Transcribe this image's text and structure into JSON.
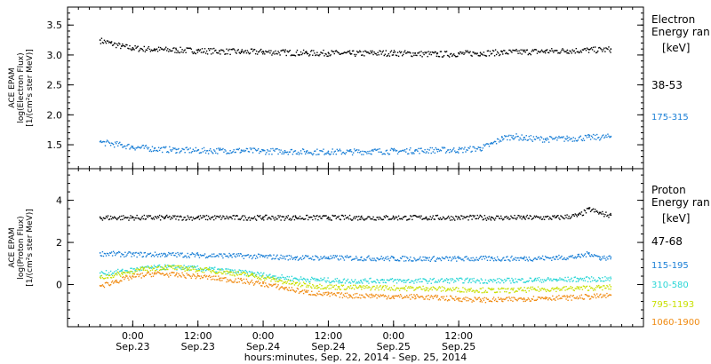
{
  "chart_data": [
    {
      "type": "scatter",
      "panel": "electron",
      "ylabel": [
        "ACE EPAM",
        "log(Electron Flux)",
        "[1/(cm²s ster MeV)]"
      ],
      "legend_title": [
        "Electron",
        "Energy ran",
        "[keV]"
      ],
      "yticks": [
        "1.5",
        "2.0",
        "2.5",
        "3.0",
        "3.5"
      ],
      "ylim": [
        1.1,
        3.8
      ],
      "series": [
        {
          "name": "38-53",
          "color": "#000000",
          "points": [
            [
              -6,
              3.25
            ],
            [
              -4,
              3.2
            ],
            [
              -2,
              3.15
            ],
            [
              0,
              3.12
            ],
            [
              4,
              3.1
            ],
            [
              8,
              3.09
            ],
            [
              12,
              3.08
            ],
            [
              16,
              3.07
            ],
            [
              20,
              3.06
            ],
            [
              24,
              3.06
            ],
            [
              28,
              3.05
            ],
            [
              32,
              3.04
            ],
            [
              36,
              3.04
            ],
            [
              40,
              3.03
            ],
            [
              44,
              3.04
            ],
            [
              48,
              3.04
            ],
            [
              52,
              3.03
            ],
            [
              56,
              3.02
            ],
            [
              60,
              3.03
            ],
            [
              64,
              3.04
            ],
            [
              68,
              3.05
            ],
            [
              72,
              3.06
            ],
            [
              76,
              3.07
            ],
            [
              80,
              3.08
            ],
            [
              84,
              3.09
            ],
            [
              88,
              3.1
            ]
          ]
        },
        {
          "name": "175-315",
          "color": "#1a7fd6",
          "points": [
            [
              -6,
              1.55
            ],
            [
              -2,
              1.5
            ],
            [
              0,
              1.47
            ],
            [
              4,
              1.44
            ],
            [
              8,
              1.42
            ],
            [
              12,
              1.41
            ],
            [
              16,
              1.41
            ],
            [
              20,
              1.41
            ],
            [
              24,
              1.4
            ],
            [
              28,
              1.4
            ],
            [
              32,
              1.39
            ],
            [
              36,
              1.39
            ],
            [
              40,
              1.39
            ],
            [
              44,
              1.4
            ],
            [
              48,
              1.4
            ],
            [
              52,
              1.41
            ],
            [
              56,
              1.42
            ],
            [
              60,
              1.42
            ],
            [
              64,
              1.45
            ],
            [
              66,
              1.52
            ],
            [
              68,
              1.62
            ],
            [
              70,
              1.65
            ],
            [
              72,
              1.62
            ],
            [
              76,
              1.6
            ],
            [
              80,
              1.61
            ],
            [
              84,
              1.63
            ],
            [
              88,
              1.64
            ]
          ]
        }
      ]
    },
    {
      "type": "scatter",
      "panel": "proton",
      "ylabel": [
        "ACE EPAM",
        "log(Proton Flux)",
        "[1/(cm²s ster MeV)]"
      ],
      "legend_title": [
        "Proton",
        "Energy ran",
        "[keV]"
      ],
      "yticks": [
        "0",
        "2",
        "4"
      ],
      "ylim": [
        -2.0,
        5.5
      ],
      "series": [
        {
          "name": "47-68",
          "color": "#000000",
          "points": [
            [
              -6,
              3.2
            ],
            [
              0,
              3.2
            ],
            [
              6,
              3.2
            ],
            [
              12,
              3.2
            ],
            [
              18,
              3.2
            ],
            [
              24,
              3.2
            ],
            [
              30,
              3.2
            ],
            [
              36,
              3.2
            ],
            [
              42,
              3.2
            ],
            [
              48,
              3.2
            ],
            [
              54,
              3.2
            ],
            [
              60,
              3.2
            ],
            [
              66,
              3.2
            ],
            [
              72,
              3.2
            ],
            [
              78,
              3.2
            ],
            [
              82,
              3.3
            ],
            [
              84,
              3.6
            ],
            [
              86,
              3.4
            ],
            [
              88,
              3.3
            ]
          ]
        },
        {
          "name": "115-195",
          "color": "#1a7fd6",
          "points": [
            [
              -6,
              1.5
            ],
            [
              0,
              1.45
            ],
            [
              6,
              1.45
            ],
            [
              12,
              1.42
            ],
            [
              18,
              1.4
            ],
            [
              24,
              1.35
            ],
            [
              30,
              1.3
            ],
            [
              36,
              1.3
            ],
            [
              42,
              1.28
            ],
            [
              48,
              1.26
            ],
            [
              54,
              1.25
            ],
            [
              60,
              1.25
            ],
            [
              66,
              1.26
            ],
            [
              72,
              1.26
            ],
            [
              78,
              1.3
            ],
            [
              82,
              1.35
            ],
            [
              84,
              1.5
            ],
            [
              86,
              1.3
            ],
            [
              88,
              1.3
            ]
          ]
        },
        {
          "name": "310-580",
          "color": "#2ad6d6",
          "points": [
            [
              -6,
              0.55
            ],
            [
              -2,
              0.65
            ],
            [
              2,
              0.8
            ],
            [
              6,
              0.85
            ],
            [
              10,
              0.82
            ],
            [
              14,
              0.75
            ],
            [
              18,
              0.65
            ],
            [
              22,
              0.55
            ],
            [
              26,
              0.4
            ],
            [
              30,
              0.3
            ],
            [
              34,
              0.25
            ],
            [
              38,
              0.2
            ],
            [
              42,
              0.2
            ],
            [
              46,
              0.22
            ],
            [
              50,
              0.2
            ],
            [
              54,
              0.2
            ],
            [
              58,
              0.22
            ],
            [
              62,
              0.22
            ],
            [
              66,
              0.2
            ],
            [
              70,
              0.22
            ],
            [
              74,
              0.25
            ],
            [
              78,
              0.25
            ],
            [
              82,
              0.28
            ],
            [
              86,
              0.28
            ],
            [
              88,
              0.28
            ]
          ]
        },
        {
          "name": "795-1193",
          "color": "#c8e000",
          "points": [
            [
              -6,
              0.35
            ],
            [
              -2,
              0.55
            ],
            [
              2,
              0.75
            ],
            [
              6,
              0.85
            ],
            [
              10,
              0.78
            ],
            [
              14,
              0.7
            ],
            [
              18,
              0.58
            ],
            [
              22,
              0.45
            ],
            [
              26,
              0.25
            ],
            [
              30,
              0.05
            ],
            [
              34,
              -0.05
            ],
            [
              38,
              -0.1
            ],
            [
              42,
              -0.12
            ],
            [
              46,
              -0.12
            ],
            [
              50,
              -0.15
            ],
            [
              54,
              -0.15
            ],
            [
              58,
              -0.2
            ],
            [
              62,
              -0.22
            ],
            [
              66,
              -0.25
            ],
            [
              70,
              -0.25
            ],
            [
              74,
              -0.2
            ],
            [
              78,
              -0.18
            ],
            [
              82,
              -0.15
            ],
            [
              86,
              -0.12
            ],
            [
              88,
              -0.1
            ]
          ]
        },
        {
          "name": "1060-1900",
          "color": "#f08a10",
          "points": [
            [
              -6,
              -0.05
            ],
            [
              -3,
              0.2
            ],
            [
              0,
              0.4
            ],
            [
              4,
              0.55
            ],
            [
              8,
              0.48
            ],
            [
              12,
              0.42
            ],
            [
              16,
              0.3
            ],
            [
              20,
              0.2
            ],
            [
              24,
              0.05
            ],
            [
              28,
              -0.15
            ],
            [
              32,
              -0.35
            ],
            [
              36,
              -0.45
            ],
            [
              40,
              -0.5
            ],
            [
              44,
              -0.5
            ],
            [
              48,
              -0.55
            ],
            [
              52,
              -0.55
            ],
            [
              56,
              -0.6
            ],
            [
              60,
              -0.65
            ],
            [
              64,
              -0.7
            ],
            [
              68,
              -0.7
            ],
            [
              72,
              -0.65
            ],
            [
              76,
              -0.6
            ],
            [
              80,
              -0.6
            ],
            [
              84,
              -0.55
            ],
            [
              88,
              -0.5
            ]
          ]
        }
      ]
    }
  ],
  "xaxis": {
    "label": "hours:minutes, Sep. 22, 2014 - Sep. 25, 2014",
    "xlim": [
      -12,
      94
    ],
    "ticks": [
      {
        "x": 0,
        "time": "0:00",
        "date": "Sep.23"
      },
      {
        "x": 12,
        "time": "12:00",
        "date": "Sep.23"
      },
      {
        "x": 24,
        "time": "0:00",
        "date": "Sep.24"
      },
      {
        "x": 36,
        "time": "12:00",
        "date": "Sep.24"
      },
      {
        "x": 48,
        "time": "0:00",
        "date": "Sep.25"
      },
      {
        "x": 60,
        "time": "12:00",
        "date": "Sep.25"
      }
    ]
  }
}
